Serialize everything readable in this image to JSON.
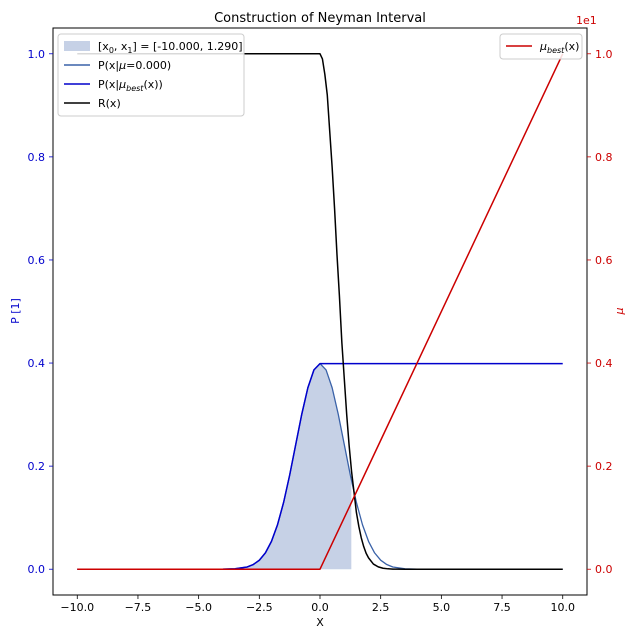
{
  "chart_data": {
    "type": "line",
    "title": "Construction of Neyman Interval",
    "xlabel": "X",
    "ylabel_left": "P [1]",
    "ylabel_right": "μ",
    "right_axis_offset_label": "1e1",
    "xlim": [
      -11.0,
      11.0
    ],
    "ylim_left": [
      -0.05,
      1.05
    ],
    "ylim_right": [
      -0.05,
      1.05
    ],
    "x_ticks": [
      -10.0,
      -7.5,
      -5.0,
      -2.5,
      0.0,
      2.5,
      5.0,
      7.5,
      10.0
    ],
    "x_tick_labels": [
      "−10.0",
      "−7.5",
      "−5.0",
      "−2.5",
      "0.0",
      "2.5",
      "5.0",
      "7.5",
      "10.0"
    ],
    "y_ticks_left": [
      0.0,
      0.2,
      0.4,
      0.6,
      0.8,
      1.0
    ],
    "y_tick_labels_left": [
      "0.0",
      "0.2",
      "0.4",
      "0.6",
      "0.8",
      "1.0"
    ],
    "y_ticks_right": [
      0.0,
      0.2,
      0.4,
      0.6,
      0.8,
      1.0
    ],
    "y_tick_labels_right": [
      "0.0",
      "0.2",
      "0.4",
      "0.6",
      "0.8",
      "1.0"
    ],
    "interval": {
      "x0": -10.0,
      "x1": 1.29
    },
    "colors": {
      "fill": "#c6d1e6",
      "pdf_mu0": "#3a62a8",
      "pdf_mubest": "#0000cc",
      "r": "#000000",
      "mu_best": "#cc0000",
      "left_axis": "#0000cc",
      "right_axis": "#cc0000"
    },
    "legend_left": {
      "placement": "upper-left",
      "entries": [
        {
          "kind": "patch",
          "label_pre": "[x",
          "sub0": "0",
          "label_mid": ", x",
          "sub1": "1",
          "label_post": "] = [-10.000, 1.290]",
          "color": "#c6d1e6"
        },
        {
          "kind": "line",
          "label_pre": "P(x|",
          "label_italic": "μ",
          "label_post": "=0.000)",
          "color": "#3a62a8"
        },
        {
          "kind": "line",
          "label_pre": "P(x|",
          "label_italic": "μ",
          "label_sub": "best",
          "label_post": "(x))",
          "color": "#0000cc"
        },
        {
          "kind": "line",
          "label_pre": "R(x)",
          "color": "#000000"
        }
      ]
    },
    "legend_right": {
      "placement": "upper-right",
      "entries": [
        {
          "kind": "line",
          "label_italic": "μ",
          "label_sub": "best",
          "label_post": "(x)",
          "color": "#cc0000"
        }
      ]
    },
    "series": [
      {
        "name": "P(x|μ=0.000)",
        "axis": "left",
        "x": [
          -10.0,
          -4.0,
          -3.5,
          -3.0,
          -2.75,
          -2.5,
          -2.25,
          -2.0,
          -1.75,
          -1.5,
          -1.25,
          -1.0,
          -0.75,
          -0.5,
          -0.25,
          0.0,
          0.25,
          0.5,
          0.75,
          1.0,
          1.25,
          1.5,
          1.75,
          2.0,
          2.25,
          2.5,
          2.75,
          3.0,
          3.5,
          4.0,
          10.0
        ],
        "y": [
          0.0,
          0.0001,
          0.0009,
          0.0044,
          0.0091,
          0.0175,
          0.0317,
          0.054,
          0.0863,
          0.1295,
          0.1826,
          0.242,
          0.3011,
          0.3521,
          0.3867,
          0.3989,
          0.3867,
          0.3521,
          0.3011,
          0.242,
          0.1826,
          0.1295,
          0.0863,
          0.054,
          0.0317,
          0.0175,
          0.0091,
          0.0044,
          0.0009,
          0.0001,
          0.0
        ]
      },
      {
        "name": "P(x|μ_best(x))",
        "axis": "left",
        "x": [
          -10.0,
          -4.0,
          -3.5,
          -3.0,
          -2.75,
          -2.5,
          -2.25,
          -2.0,
          -1.75,
          -1.5,
          -1.25,
          -1.0,
          -0.75,
          -0.5,
          -0.25,
          0.0,
          10.0
        ],
        "y": [
          0.0,
          0.0001,
          0.0009,
          0.0044,
          0.0091,
          0.0175,
          0.0317,
          0.054,
          0.0863,
          0.1295,
          0.1826,
          0.242,
          0.3011,
          0.3521,
          0.3867,
          0.3989,
          0.3989
        ]
      },
      {
        "name": "R(x)",
        "axis": "left",
        "x": [
          -10.0,
          0.0,
          0.1,
          0.2,
          0.3,
          0.4,
          0.5,
          0.6,
          0.7,
          0.8,
          0.9,
          1.0,
          1.1,
          1.2,
          1.3,
          1.4,
          1.5,
          1.6,
          1.7,
          1.8,
          1.9,
          2.0,
          2.2,
          2.4,
          2.6,
          2.8,
          3.0,
          3.2,
          3.5,
          4.0,
          10.0
        ],
        "y": [
          1.0,
          1.0,
          0.99,
          0.96,
          0.92,
          0.85,
          0.78,
          0.7,
          0.61,
          0.53,
          0.44,
          0.37,
          0.3,
          0.24,
          0.19,
          0.15,
          0.11,
          0.083,
          0.061,
          0.044,
          0.031,
          0.022,
          0.01,
          0.0045,
          0.0019,
          0.0008,
          0.0003,
          0.0001,
          0.0,
          0.0,
          0.0
        ]
      },
      {
        "name": "μ_best(x)",
        "axis": "right",
        "x": [
          -10.0,
          0.0,
          10.0
        ],
        "y": [
          0.0,
          0.0,
          1.0
        ]
      }
    ]
  }
}
